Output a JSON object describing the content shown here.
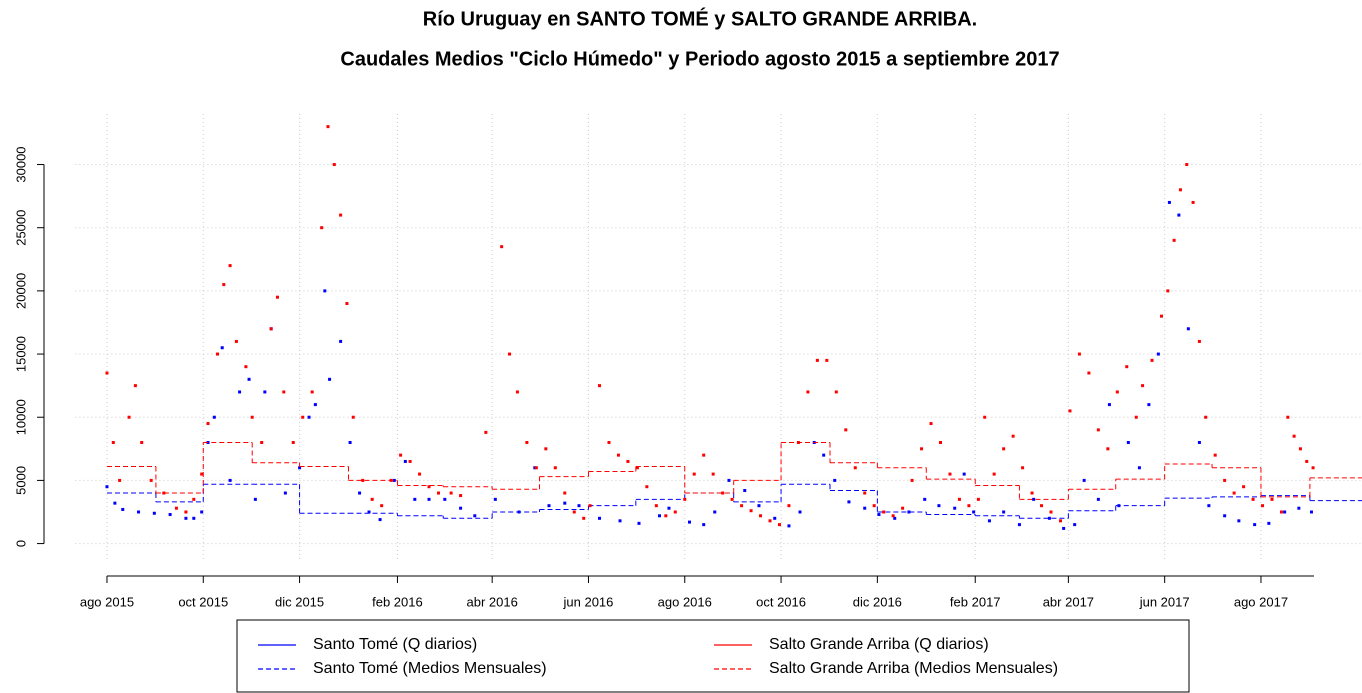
{
  "chart_data": {
    "type": "scatter",
    "title": [
      "Río Uruguay en SANTO TOMÉ y SALTO GRANDE ARRIBA.",
      "Caudales Medios \"Ciclo Húmedo\" y Periodo agosto 2015 a septiembre 2017"
    ],
    "xlim": [
      -20,
      795
    ],
    "xticks": [
      {
        "value": 0,
        "label": "ago 2015"
      },
      {
        "value": 61,
        "label": "oct 2015"
      },
      {
        "value": 122,
        "label": "dic 2015"
      },
      {
        "value": 184,
        "label": "feb 2016"
      },
      {
        "value": 244,
        "label": "abr 2016"
      },
      {
        "value": 305,
        "label": "jun 2016"
      },
      {
        "value": 366,
        "label": "ago 2016"
      },
      {
        "value": 427,
        "label": "oct 2016"
      },
      {
        "value": 488,
        "label": "dic 2016"
      },
      {
        "value": 550,
        "label": "feb 2017"
      },
      {
        "value": 609,
        "label": "abr 2017"
      },
      {
        "value": 670,
        "label": "jun 2017"
      },
      {
        "value": 731,
        "label": "ago 2017"
      }
    ],
    "ylim": [
      -1300,
      34000
    ],
    "yticks": [
      0,
      5000,
      10000,
      15000,
      20000,
      25000,
      30000
    ],
    "grid": true,
    "legend": "bottom",
    "series": [
      {
        "name": "Santo Tomé (Q diarios)",
        "color": "#0000ff",
        "linestyle": "solid",
        "x": [
          0,
          5,
          10,
          20,
          30,
          40,
          50,
          55,
          60,
          64,
          68,
          73,
          78,
          84,
          90,
          94,
          100,
          104,
          113,
          122,
          128,
          132,
          138,
          141,
          148,
          154,
          160,
          166,
          173,
          182,
          189,
          195,
          204,
          214,
          224,
          233,
          246,
          261,
          271,
          280,
          290,
          299,
          312,
          325,
          337,
          350,
          356,
          369,
          378,
          385,
          394,
          404,
          413,
          423,
          432,
          439,
          448,
          454,
          461,
          470,
          480,
          489,
          499,
          508,
          518,
          527,
          537,
          543,
          549,
          559,
          568,
          578,
          587,
          597,
          606,
          613,
          619,
          628,
          635,
          641,
          647,
          654,
          660,
          666,
          673,
          679,
          685,
          692,
          698,
          708,
          717,
          727,
          736,
          746,
          755,
          763
        ],
        "values": [
          4500,
          3200,
          2700,
          2500,
          2400,
          2300,
          2000,
          2000,
          2500,
          8000,
          10000,
          15500,
          5000,
          12000,
          13000,
          3500,
          12000,
          17000,
          4000,
          6000,
          10000,
          11000,
          20000,
          13000,
          16000,
          8000,
          4000,
          2500,
          1900,
          5000,
          6500,
          3500,
          3500,
          3500,
          2800,
          2200,
          3500,
          2500,
          6000,
          3000,
          3200,
          3000,
          2000,
          1800,
          1600,
          2200,
          2800,
          1700,
          1500,
          2500,
          5000,
          4200,
          3000,
          2000,
          1400,
          2500,
          8000,
          7000,
          5000,
          3300,
          2800,
          2300,
          2000,
          2500,
          3500,
          3000,
          2800,
          5500,
          2500,
          1800,
          2500,
          1500,
          3500,
          2000,
          1200,
          1500,
          5000,
          3500,
          11000,
          3000,
          8000,
          6000,
          11000,
          15000,
          27000,
          26000,
          17000,
          8000,
          3000,
          2200,
          1800,
          1500,
          1600,
          2500,
          2800,
          2500
        ]
      },
      {
        "name": "Santo Tomé (Medios Mensuales)",
        "color": "#0000ff",
        "linestyle": "dashed",
        "x": [
          0,
          31,
          61,
          92,
          122,
          153,
          184,
          213,
          244,
          274,
          305,
          335,
          366,
          397,
          427,
          458,
          488,
          519,
          550,
          578,
          609,
          639,
          670,
          700,
          731,
          762
        ],
        "values": [
          4000,
          3300,
          4700,
          4700,
          2400,
          2400,
          2200,
          2000,
          2500,
          2700,
          3000,
          3500,
          4000,
          3300,
          4700,
          4200,
          2500,
          2300,
          2200,
          2000,
          2600,
          3000,
          3600,
          3700,
          3800,
          3400
        ]
      },
      {
        "name": "Salto Grande Arriba (Q diarios)",
        "color": "#ff0000",
        "linestyle": "solid",
        "x": [
          0,
          4,
          8,
          14,
          18,
          22,
          28,
          36,
          44,
          50,
          55,
          60,
          64,
          70,
          74,
          78,
          82,
          88,
          92,
          98,
          104,
          108,
          112,
          118,
          124,
          130,
          136,
          140,
          144,
          148,
          152,
          156,
          162,
          168,
          174,
          180,
          186,
          192,
          198,
          204,
          210,
          218,
          224,
          240,
          250,
          255,
          260,
          266,
          272,
          278,
          284,
          290,
          296,
          302,
          306,
          312,
          318,
          324,
          330,
          336,
          342,
          348,
          354,
          360,
          366,
          372,
          378,
          384,
          390,
          396,
          402,
          408,
          414,
          420,
          426,
          432,
          438,
          444,
          450,
          456,
          462,
          468,
          474,
          480,
          486,
          492,
          498,
          504,
          510,
          516,
          522,
          528,
          534,
          540,
          546,
          552,
          556,
          562,
          568,
          574,
          580,
          586,
          592,
          598,
          604,
          610,
          616,
          622,
          628,
          634,
          640,
          646,
          652,
          656,
          662,
          668,
          672,
          676,
          680,
          684,
          688,
          692,
          696,
          702,
          708,
          714,
          720,
          726,
          732,
          738,
          744,
          748,
          752,
          756,
          760,
          764
        ],
        "values": [
          13500,
          8000,
          5000,
          10000,
          12500,
          8000,
          5000,
          4000,
          2800,
          2500,
          3500,
          5500,
          9500,
          15000,
          20500,
          22000,
          16000,
          14000,
          10000,
          8000,
          17000,
          19500,
          12000,
          8000,
          10000,
          12000,
          25000,
          33000,
          30000,
          26000,
          19000,
          10000,
          5000,
          3500,
          3000,
          5000,
          7000,
          6500,
          5500,
          4500,
          4000,
          4000,
          3800,
          8800,
          23500,
          15000,
          12000,
          8000,
          6000,
          7500,
          6000,
          4000,
          2500,
          2000,
          3000,
          12500,
          8000,
          7000,
          6500,
          6000,
          4500,
          3000,
          2200,
          2500,
          3500,
          5500,
          7000,
          5500,
          4000,
          3500,
          3000,
          2600,
          2200,
          1800,
          1500,
          3000,
          8000,
          12000,
          14500,
          14500,
          12000,
          9000,
          6000,
          4000,
          3000,
          2500,
          2200,
          2800,
          5000,
          7500,
          9500,
          8000,
          5500,
          3500,
          3000,
          3500,
          10000,
          5500,
          7500,
          8500,
          6000,
          4000,
          3000,
          2500,
          1800,
          10500,
          15000,
          13500,
          9000,
          7500,
          12000,
          14000,
          10000,
          12500,
          14500,
          18000,
          20000,
          24000,
          28000,
          30000,
          27000,
          16000,
          10000,
          7000,
          5000,
          4000,
          4500,
          3500,
          3000,
          3500,
          2500,
          10000,
          8500,
          7500,
          6500,
          6000
        ]
      },
      {
        "name": "Salto Grande Arriba (Medios Mensuales)",
        "color": "#ff0000",
        "linestyle": "dashed",
        "x": [
          0,
          31,
          61,
          92,
          122,
          153,
          184,
          213,
          244,
          274,
          305,
          335,
          366,
          397,
          427,
          458,
          488,
          519,
          550,
          578,
          609,
          639,
          670,
          700,
          731,
          762
        ],
        "values": [
          6100,
          4000,
          8000,
          6400,
          6100,
          5000,
          4600,
          4500,
          4300,
          5300,
          5700,
          6100,
          4000,
          5000,
          8000,
          6400,
          6000,
          5100,
          4600,
          3500,
          4300,
          5100,
          6300,
          6000,
          3700,
          5200
        ]
      }
    ]
  }
}
